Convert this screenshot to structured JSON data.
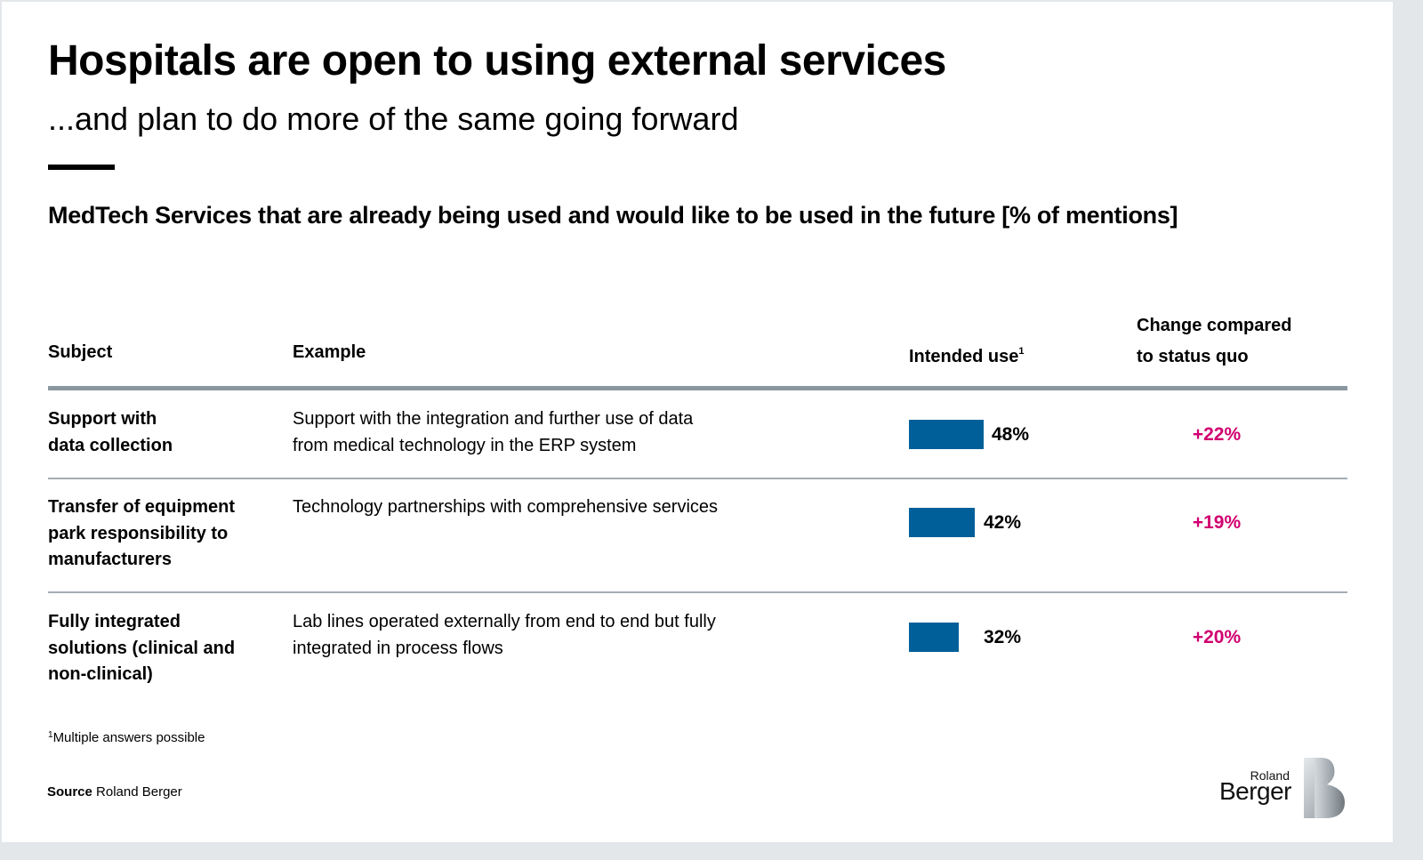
{
  "header": {
    "title": "Hospitals are open to using external services",
    "subtitle": "...and plan to do more of the same going forward"
  },
  "chart_data": {
    "type": "table",
    "title": "MedTech Services that are already being used and would like to be used in the future [% of mentions]",
    "columns": {
      "subject": "Subject",
      "example": "Example",
      "intended_use": "Intended use",
      "intended_use_footnote_mark": "1",
      "change_line1": "Change compared",
      "change_line2": "to status quo"
    },
    "value_unit": "%",
    "bar_color": "#005f99",
    "change_color": "#d1006f",
    "rows": [
      {
        "subject_lines": [
          "Support with",
          "data collection"
        ],
        "example_lines": [
          "Support with the integration and further use of data",
          "from medical technology in the ERP system"
        ],
        "intended_use": 48,
        "intended_use_label": "48%",
        "change": 22,
        "change_label": "+22%"
      },
      {
        "subject_lines": [
          "Transfer of equipment",
          "park responsibility to",
          "manufacturers"
        ],
        "example_lines": [
          "Technology partnerships with comprehensive services"
        ],
        "intended_use": 42,
        "intended_use_label": "42%",
        "change": 19,
        "change_label": "+19%"
      },
      {
        "subject_lines": [
          "Fully integrated",
          "solutions (clinical and",
          "non-clinical)"
        ],
        "example_lines": [
          "Lab lines operated externally from end to end but fully",
          "integrated in process flows"
        ],
        "intended_use": 32,
        "intended_use_label": "32%",
        "change": 20,
        "change_label": "+20%"
      }
    ]
  },
  "footer": {
    "footnote_mark": "1",
    "footnote_text": "Multiple answers possible",
    "source_label": "Source",
    "source_text": "Roland Berger"
  },
  "logo": {
    "line1": "Roland",
    "line2": "Berger"
  }
}
